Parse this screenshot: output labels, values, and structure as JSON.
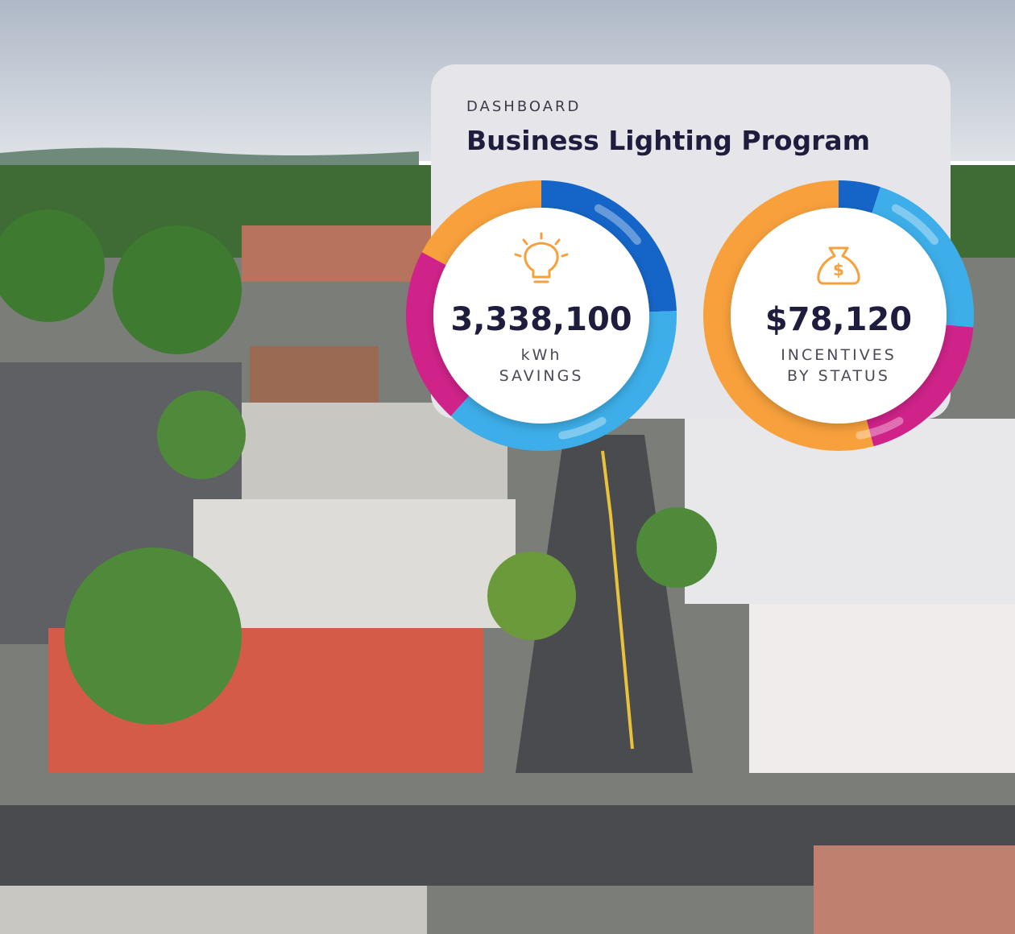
{
  "card": {
    "eyebrow": "DASHBOARD",
    "title": "Business Lighting Program"
  },
  "metrics": [
    {
      "value": "3,338,100",
      "label_lines": [
        "kWh",
        "SAVINGS"
      ]
    },
    {
      "value": "$78,120",
      "label_lines": [
        "INCENTIVES",
        "BY STATUS"
      ]
    }
  ]
}
